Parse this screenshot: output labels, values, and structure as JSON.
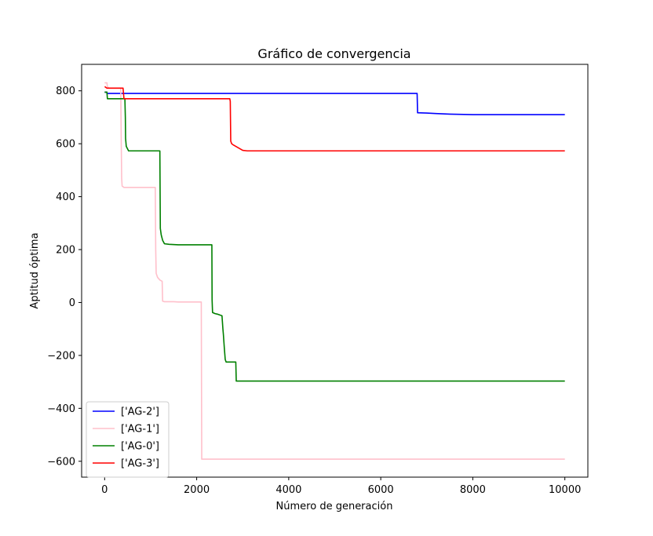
{
  "chart_data": {
    "type": "line",
    "title": "Gráfico de convergencia",
    "xlabel": "Número de generación",
    "ylabel": "Aptitud óptima",
    "xlim": [
      -500,
      10500
    ],
    "ylim": [
      -660,
      900
    ],
    "xticks": [
      0,
      2000,
      4000,
      6000,
      8000,
      10000
    ],
    "yticks": [
      -600,
      -400,
      -200,
      0,
      200,
      400,
      600,
      800
    ],
    "ytick_labels": [
      "−600",
      "−400",
      "−200",
      "0",
      "200",
      "400",
      "600",
      "800"
    ],
    "grid": false,
    "legend_position": "lower-left",
    "series": [
      {
        "name": "['AG-2']",
        "color": "#0000ff",
        "x": [
          0,
          50,
          50,
          6790,
          6800,
          7000,
          7200,
          7500,
          8000,
          10000
        ],
        "y": [
          795,
          795,
          790,
          790,
          717,
          716,
          714,
          712,
          710,
          710
        ]
      },
      {
        "name": "['AG-1']",
        "color": "#ffc0cb",
        "x": [
          0,
          50,
          60,
          100,
          350,
          360,
          370,
          380,
          420,
          1100,
          1110,
          1120,
          1150,
          1200,
          1250,
          1260,
          1300,
          1500,
          1600,
          2100,
          2110,
          10000
        ],
        "y": [
          830,
          830,
          815,
          810,
          810,
          620,
          470,
          440,
          435,
          435,
          200,
          110,
          95,
          85,
          80,
          5,
          3,
          3,
          2,
          2,
          -592,
          -592
        ]
      },
      {
        "name": "['AG-0']",
        "color": "#008000",
        "x": [
          0,
          50,
          60,
          440,
          450,
          455,
          470,
          520,
          1200,
          1210,
          1230,
          1260,
          1300,
          1400,
          1600,
          2330,
          2335,
          2345,
          2400,
          2450,
          2550,
          2570,
          2580,
          2600,
          2620,
          2640,
          2850,
          2860,
          10000
        ],
        "y": [
          795,
          795,
          770,
          770,
          700,
          620,
          590,
          573,
          573,
          280,
          255,
          235,
          222,
          220,
          218,
          218,
          10,
          -38,
          -42,
          -44,
          -50,
          -100,
          -120,
          -170,
          -215,
          -225,
          -225,
          -297,
          -297
        ]
      },
      {
        "name": "['AG-3']",
        "color": "#ff0000",
        "x": [
          0,
          10,
          50,
          400,
          420,
          2720,
          2730,
          2740,
          2760,
          2800,
          2900,
          3000,
          3100,
          10000
        ],
        "y": [
          815,
          815,
          810,
          810,
          770,
          770,
          760,
          610,
          600,
          595,
          585,
          575,
          573,
          573
        ]
      }
    ]
  }
}
